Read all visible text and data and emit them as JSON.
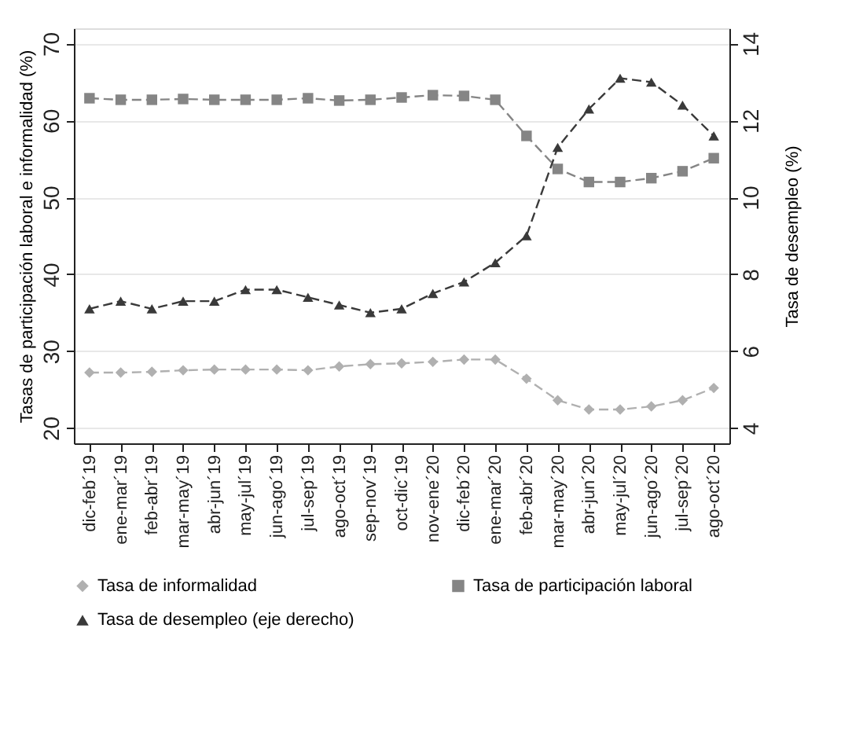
{
  "chart_data": {
    "type": "line",
    "ylabel": "Tasas de participación laboral e informalidad (%)",
    "y2label": "Tasa de desempleo (%)",
    "categories": [
      "dic-feb´19",
      "ene-mar´19",
      "feb-abr´19",
      "mar-may´19",
      "abr-jun´19",
      "may-jul´19",
      "jun-ago´19",
      "jul-sep´19",
      "ago-oct´19",
      "sep-nov´19",
      "oct-dic´19",
      "nov-ene´20",
      "dic-feb´20",
      "ene-mar´20",
      "feb-abr´20",
      "mar-may´20",
      "abr-jun´20",
      "may-jul´20",
      "jun-ago´20",
      "jul-sep´20",
      "ago-oct´20"
    ],
    "series": [
      {
        "name": "Tasa de informalidad",
        "color": "#b0b0b0",
        "marker": "diamond",
        "values": [
          27.2,
          27.2,
          27.3,
          27.5,
          27.6,
          27.6,
          27.6,
          27.5,
          28.0,
          28.3,
          28.4,
          28.6,
          28.9,
          28.9,
          26.4,
          23.6,
          22.4,
          22.4,
          22.8,
          23.6,
          25.2
        ]
      },
      {
        "name": "Tasa de participación laboral",
        "color": "#858585",
        "marker": "square",
        "values": [
          62.9,
          62.7,
          62.7,
          62.8,
          62.7,
          62.7,
          62.7,
          62.9,
          62.6,
          62.7,
          63.0,
          63.3,
          63.2,
          62.7,
          58.0,
          53.7,
          52.0,
          52.0,
          52.5,
          53.4,
          55.1
        ]
      },
      {
        "name": "Tasa de desempleo (eje derecho)",
        "color": "#3a3a3a",
        "marker": "triangle",
        "axis": "y2",
        "values": [
          7.1,
          7.3,
          7.1,
          7.3,
          7.3,
          7.6,
          7.6,
          7.4,
          7.2,
          7.0,
          7.1,
          7.5,
          7.8,
          8.3,
          9.0,
          11.3,
          12.3,
          13.1,
          13.0,
          12.4,
          11.6
        ]
      }
    ],
    "ylim": [
      18,
      72
    ],
    "yticks": [
      20,
      30,
      40,
      50,
      60,
      70
    ],
    "y2lim": [
      3.6,
      14.4
    ],
    "y2ticks": [
      4,
      6,
      8,
      10,
      12,
      14
    ],
    "grid": "y",
    "legend": "bottom",
    "line_style": "dashed"
  }
}
